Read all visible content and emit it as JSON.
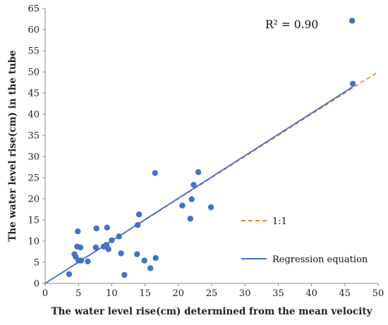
{
  "chart_data": {
    "type": "scatter",
    "xlabel": "The water level rise(cm) determined from the mean velocity",
    "ylabel": "The water level rise(cm)  in the tube",
    "xlim": [
      0,
      50
    ],
    "ylim": [
      0,
      65
    ],
    "x_ticks": [
      "0",
      "5",
      "10",
      "15",
      "20",
      "25",
      "30",
      "35",
      "40",
      "45",
      "50"
    ],
    "y_ticks": [
      "0",
      "5",
      "10",
      "15",
      "20",
      "25",
      "30",
      "35",
      "40",
      "45",
      "50",
      "55",
      "60",
      "65"
    ],
    "grid": false,
    "annotation": "R² = 0.90",
    "legend": [
      {
        "label": "1:1",
        "style": "dashed",
        "color": "#ED7D31"
      },
      {
        "label": "Regression  equation",
        "style": "solid",
        "color": "#4472C4"
      }
    ],
    "points_color": "#4472C4",
    "points": [
      {
        "x": 3.6,
        "y": 2.2
      },
      {
        "x": 4.4,
        "y": 6.9
      },
      {
        "x": 4.6,
        "y": 6.3
      },
      {
        "x": 4.8,
        "y": 8.7
      },
      {
        "x": 4.9,
        "y": 12.3
      },
      {
        "x": 5.0,
        "y": 5.4
      },
      {
        "x": 5.3,
        "y": 8.5
      },
      {
        "x": 5.4,
        "y": 5.4
      },
      {
        "x": 6.4,
        "y": 5.2
      },
      {
        "x": 7.6,
        "y": 8.5
      },
      {
        "x": 7.7,
        "y": 13.0
      },
      {
        "x": 8.8,
        "y": 8.7
      },
      {
        "x": 9.2,
        "y": 9.1
      },
      {
        "x": 9.3,
        "y": 13.2
      },
      {
        "x": 9.5,
        "y": 8.1
      },
      {
        "x": 10.0,
        "y": 10.2
      },
      {
        "x": 11.1,
        "y": 11.1
      },
      {
        "x": 11.4,
        "y": 7.1
      },
      {
        "x": 11.9,
        "y": 2.0
      },
      {
        "x": 13.8,
        "y": 6.9
      },
      {
        "x": 13.9,
        "y": 13.8
      },
      {
        "x": 14.1,
        "y": 16.3
      },
      {
        "x": 14.9,
        "y": 5.4
      },
      {
        "x": 15.8,
        "y": 3.6
      },
      {
        "x": 16.5,
        "y": 26.1
      },
      {
        "x": 16.6,
        "y": 6.0
      },
      {
        "x": 20.6,
        "y": 18.4
      },
      {
        "x": 21.8,
        "y": 15.3
      },
      {
        "x": 22.0,
        "y": 19.9
      },
      {
        "x": 22.3,
        "y": 23.3
      },
      {
        "x": 23.0,
        "y": 26.3
      },
      {
        "x": 24.9,
        "y": 18.0
      },
      {
        "x": 46.1,
        "y": 62.1
      },
      {
        "x": 46.2,
        "y": 47.2
      }
    ],
    "one_to_one_line": {
      "x": [
        0,
        50
      ],
      "y": [
        0,
        50
      ]
    },
    "regression_line": {
      "x": [
        0,
        46.2
      ],
      "y": [
        0,
        46.5
      ]
    }
  }
}
